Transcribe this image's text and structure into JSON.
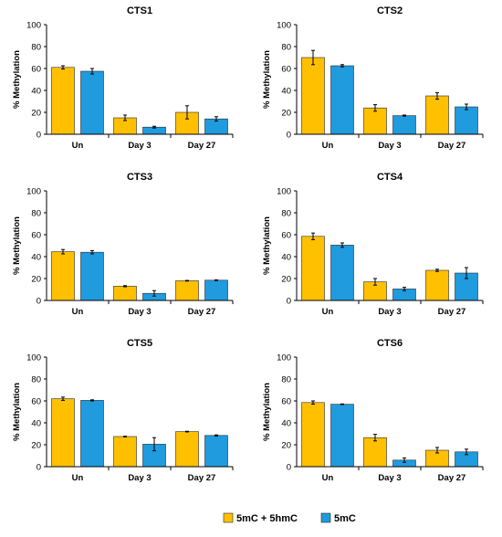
{
  "colors": {
    "series_a": "#FFC000",
    "series_b": "#1F9BDE",
    "bar_stroke": "#2b2b2b"
  },
  "legend": [
    {
      "label": "5mC + 5hmC",
      "color": "#FFC000"
    },
    {
      "label": "5mC",
      "color": "#1F9BDE"
    }
  ],
  "chart_data": [
    {
      "type": "bar",
      "title": "CTS1",
      "ylabel": "% Methylation",
      "ylim": [
        0,
        100
      ],
      "yticks": [
        0,
        20,
        40,
        60,
        80,
        100
      ],
      "categories": [
        "Un",
        "Day 3",
        "Day 27"
      ],
      "series": [
        {
          "name": "5mC + 5hmC",
          "values": [
            61,
            15,
            20
          ],
          "errors": [
            1.5,
            2.5,
            6
          ]
        },
        {
          "name": "5mC",
          "values": [
            57.5,
            6.5,
            14
          ],
          "errors": [
            2.5,
            0.8,
            2
          ]
        }
      ]
    },
    {
      "type": "bar",
      "title": "CTS2",
      "ylabel": "% Methylation",
      "ylim": [
        0,
        100
      ],
      "yticks": [
        0,
        20,
        40,
        60,
        80,
        100
      ],
      "categories": [
        "Un",
        "Day 3",
        "Day 27"
      ],
      "series": [
        {
          "name": "5mC + 5hmC",
          "values": [
            70,
            24,
            35
          ],
          "errors": [
            6.5,
            3,
            3
          ]
        },
        {
          "name": "5mC",
          "values": [
            62.5,
            17,
            25
          ],
          "errors": [
            1,
            0.5,
            2.5
          ]
        }
      ]
    },
    {
      "type": "bar",
      "title": "CTS3",
      "ylabel": "% Methylation",
      "ylim": [
        0,
        100
      ],
      "yticks": [
        0,
        20,
        40,
        60,
        80,
        100
      ],
      "categories": [
        "Un",
        "Day 3",
        "Day 27"
      ],
      "series": [
        {
          "name": "5mC + 5hmC",
          "values": [
            44.5,
            13,
            18
          ],
          "errors": [
            2,
            0.5,
            0.3
          ]
        },
        {
          "name": "5mC",
          "values": [
            44,
            6.5,
            18.5
          ],
          "errors": [
            1.5,
            2.5,
            0.3
          ]
        }
      ]
    },
    {
      "type": "bar",
      "title": "CTS4",
      "ylabel": "% Methylation",
      "ylim": [
        0,
        100
      ],
      "yticks": [
        0,
        20,
        40,
        60,
        80,
        100
      ],
      "categories": [
        "Un",
        "Day 3",
        "Day 27"
      ],
      "series": [
        {
          "name": "5mC + 5hmC",
          "values": [
            58.5,
            17,
            27.5
          ],
          "errors": [
            3,
            3,
            1
          ]
        },
        {
          "name": "5mC",
          "values": [
            50.5,
            10.5,
            25
          ],
          "errors": [
            2,
            1.5,
            5
          ]
        }
      ]
    },
    {
      "type": "bar",
      "title": "CTS5",
      "ylabel": "% Methylation",
      "ylim": [
        0,
        100
      ],
      "yticks": [
        0,
        20,
        40,
        60,
        80,
        100
      ],
      "categories": [
        "Un",
        "Day 3",
        "Day 27"
      ],
      "series": [
        {
          "name": "5mC + 5hmC",
          "values": [
            62,
            27.5,
            32
          ],
          "errors": [
            1.5,
            0.3,
            0.3
          ]
        },
        {
          "name": "5mC",
          "values": [
            60.5,
            20.5,
            28.5
          ],
          "errors": [
            0.5,
            6,
            0.5
          ]
        }
      ]
    },
    {
      "type": "bar",
      "title": "CTS6",
      "ylabel": "% Methylation",
      "ylim": [
        0,
        100
      ],
      "yticks": [
        0,
        20,
        40,
        60,
        80,
        100
      ],
      "categories": [
        "Un",
        "Day 3",
        "Day 27"
      ],
      "series": [
        {
          "name": "5mC + 5hmC",
          "values": [
            58.5,
            26.5,
            15
          ],
          "errors": [
            1.5,
            3,
            2.5
          ]
        },
        {
          "name": "5mC",
          "values": [
            57,
            6,
            13.5
          ],
          "errors": [
            0.3,
            2,
            2.5
          ]
        }
      ]
    }
  ]
}
